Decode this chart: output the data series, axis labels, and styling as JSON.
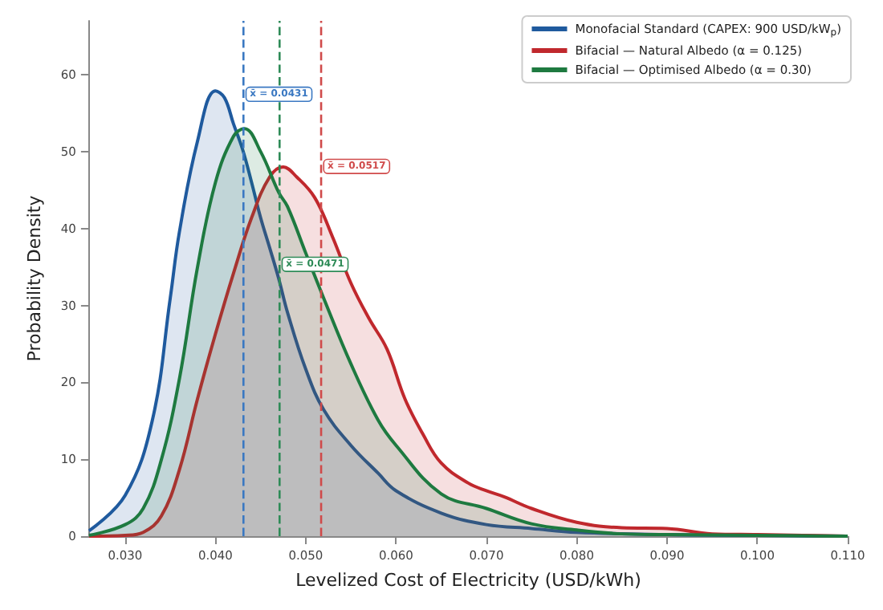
{
  "chart_data": {
    "type": "area",
    "xlabel": "Levelized Cost of Electricity (USD/kWh)",
    "ylabel": "Probability Density",
    "xlim": [
      0.026,
      0.11
    ],
    "xticks": [
      {
        "value": 0.03,
        "label": "0.030"
      },
      {
        "value": 0.04,
        "label": "0.040"
      },
      {
        "value": 0.05,
        "label": "0.050"
      },
      {
        "value": 0.06,
        "label": "0.060"
      },
      {
        "value": 0.07,
        "label": "0.070"
      },
      {
        "value": 0.08,
        "label": "0.080"
      },
      {
        "value": 0.09,
        "label": "0.090"
      },
      {
        "value": 0.1,
        "label": "0.100"
      },
      {
        "value": 0.11,
        "label": "0.110"
      }
    ],
    "ylim": [
      0,
      67
    ],
    "yticks": [
      0,
      10,
      20,
      30,
      40,
      50,
      60
    ],
    "grid": false,
    "legend": "top right",
    "marker": "none",
    "line_style": "solid",
    "series": [
      {
        "name": "Monofacial Standard (CAPEX: 900 USD/kW$_{p}$)",
        "color": "#1f5a9e",
        "x": [
          0.026,
          0.03,
          0.033,
          0.035,
          0.036,
          0.038,
          0.04,
          0.041,
          0.042,
          0.043,
          0.044,
          0.045,
          0.046,
          0.047,
          0.048,
          0.05,
          0.052,
          0.055,
          0.058,
          0.06,
          0.065,
          0.07,
          0.075,
          0.08,
          0.09,
          0.1,
          0.11
        ],
        "values": [
          0.7,
          5.3,
          15,
          31,
          39.5,
          51.3,
          57.9,
          57,
          53.6,
          50.3,
          46,
          41.4,
          37.5,
          33.5,
          29,
          21.7,
          16.4,
          11.8,
          8.2,
          5.9,
          3,
          1.5,
          1,
          0.5,
          0.2,
          0.1,
          0
        ]
      },
      {
        "name": "Bifacial — Natural Albedo (α = 0.125)",
        "color": "#c0282d",
        "x": [
          0.026,
          0.03,
          0.032,
          0.034,
          0.036,
          0.038,
          0.04,
          0.042,
          0.044,
          0.046,
          0.0475,
          0.049,
          0.051,
          0.053,
          0.055,
          0.057,
          0.059,
          0.061,
          0.063,
          0.065,
          0.068,
          0.07,
          0.072,
          0.075,
          0.08,
          0.085,
          0.09,
          0.095,
          0.1,
          0.105,
          0.11
        ],
        "values": [
          0,
          0.1,
          0.5,
          2.6,
          8.6,
          17.8,
          26.3,
          34.2,
          41.4,
          46.7,
          48,
          46.7,
          44,
          38.8,
          32.9,
          28.3,
          24.3,
          17.8,
          13.2,
          9.5,
          6.9,
          5.9,
          5.1,
          3.6,
          1.8,
          1.1,
          1,
          0.3,
          0.2,
          0.1,
          0
        ]
      },
      {
        "name": "Bifacial — Optimised Albedo (α = 0.30)",
        "color": "#1e7a40",
        "x": [
          0.026,
          0.03,
          0.032,
          0.034,
          0.036,
          0.038,
          0.04,
          0.042,
          0.0432,
          0.045,
          0.047,
          0.048,
          0.05,
          0.052,
          0.055,
          0.058,
          0.06,
          0.065,
          0.07,
          0.075,
          0.08,
          0.085,
          0.09,
          0.1,
          0.11
        ],
        "values": [
          0.1,
          1.5,
          3.6,
          9.9,
          20.4,
          34.9,
          46,
          52,
          53,
          50,
          44.7,
          42.8,
          36.8,
          30.9,
          22.4,
          15.1,
          11.8,
          5.5,
          3.6,
          1.6,
          0.8,
          0.3,
          0.2,
          0.1,
          0
        ]
      }
    ],
    "ref_lines": [
      {
        "axis": "x",
        "value": 0.0431,
        "label": "x̄ = 0.0431",
        "color": "#3a78c2",
        "line_style": "dashed"
      },
      {
        "axis": "x",
        "value": 0.0517,
        "label": "x̄ = 0.0517",
        "color": "#d04a4a",
        "line_style": "dashed"
      },
      {
        "axis": "x",
        "value": 0.0471,
        "label": "x̄ = 0.0471",
        "color": "#2e8b57",
        "line_style": "dashed"
      }
    ]
  }
}
